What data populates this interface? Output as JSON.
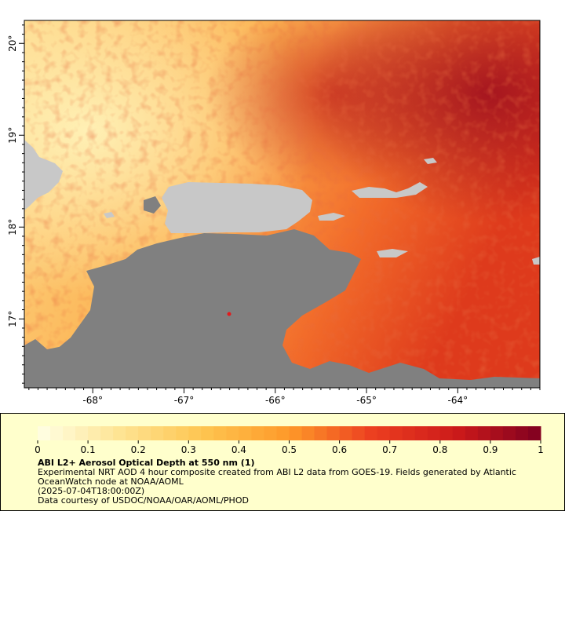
{
  "map": {
    "latitude_ticks": [
      {
        "value": 20,
        "label": "20°"
      },
      {
        "value": 19,
        "label": "19°"
      },
      {
        "value": 18,
        "label": "18°"
      },
      {
        "value": 17,
        "label": "17°"
      }
    ],
    "longitude_ticks": [
      {
        "value": -68,
        "label": "-68°"
      },
      {
        "value": -67,
        "label": "-67°"
      },
      {
        "value": -66,
        "label": "-66°"
      },
      {
        "value": -65,
        "label": "-65°"
      },
      {
        "value": -64,
        "label": "-64°"
      }
    ],
    "extent": {
      "lon_min": -68.75,
      "lon_max": -63.1,
      "lat_min": 16.25,
      "lat_max": 20.25
    },
    "colors": {
      "land": "#c8c8c8",
      "no_data": "#808080",
      "frame": "#000000"
    }
  },
  "legend": {
    "ticks": [
      "0",
      "0.1",
      "0.2",
      "0.3",
      "0.4",
      "0.5",
      "0.6",
      "0.7",
      "0.8",
      "0.9",
      "1"
    ],
    "range": [
      0,
      1
    ],
    "steps": 40,
    "color_stops": [
      "#ffffe5",
      "#fee391",
      "#fec44f",
      "#fe9929",
      "#ec3e20",
      "#cc1a1a",
      "#7f0020"
    ],
    "title": "ABI L2+ Aerosol Optical Depth at 550 nm (1)",
    "description": "Experimental NRT AOD 4 hour composite created from ABI L2 data from GOES-19. Fields generated by Atlantic OceanWatch node at NOAA/AOML",
    "timestamp": "(2025-07-04T18:00:00Z)",
    "credit": "Data courtesy of USDOC/NOAA/OAR/AOML/PHOD"
  }
}
